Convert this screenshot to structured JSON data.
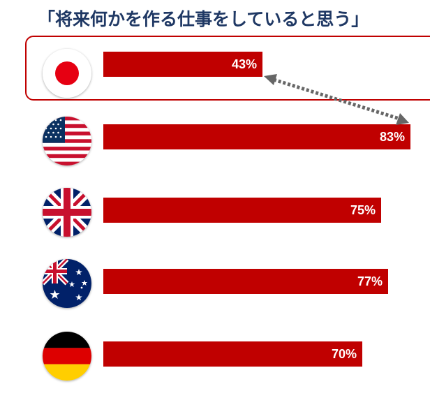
{
  "title": "「将来何かを作る仕事をしていると思う」",
  "colors": {
    "bar": "#c00000",
    "title": "#1f3864",
    "highlight": "#c00000",
    "arrow": "#666666"
  },
  "chart_data": {
    "type": "bar",
    "orientation": "horizontal",
    "categories": [
      "japan-flag",
      "usa-flag",
      "uk-flag",
      "australia-flag",
      "germany-flag"
    ],
    "values": [
      43,
      83,
      75,
      77,
      70
    ],
    "value_labels": [
      "43%",
      "83%",
      "75%",
      "77%",
      "70%"
    ],
    "unit": "%",
    "title": "「将来何かを作る仕事をしていると思う」",
    "highlighted_category": "japan-flag",
    "annotation": "double-headed dotted arrow between 43% and 83%"
  }
}
